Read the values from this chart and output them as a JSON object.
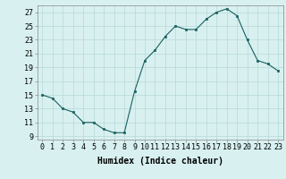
{
  "x": [
    0,
    1,
    2,
    3,
    4,
    5,
    6,
    7,
    8,
    9,
    10,
    11,
    12,
    13,
    14,
    15,
    16,
    17,
    18,
    19,
    20,
    21,
    22,
    23
  ],
  "y": [
    15,
    14.5,
    13,
    12.5,
    11,
    11,
    10,
    9.5,
    9.5,
    15.5,
    20,
    21.5,
    23.5,
    25,
    24.5,
    24.5,
    26,
    27,
    27.5,
    26.5,
    23,
    20,
    19.5,
    18.5
  ],
  "line_color": "#1a6060",
  "marker_color": "#1a6060",
  "bg_color": "#d8f0f0",
  "grid_color": "#b8d8d8",
  "xlabel": "Humidex (Indice chaleur)",
  "xlim": [
    -0.5,
    23.5
  ],
  "ylim": [
    8.5,
    28
  ],
  "yticks": [
    9,
    11,
    13,
    15,
    17,
    19,
    21,
    23,
    25,
    27
  ],
  "xticks": [
    0,
    1,
    2,
    3,
    4,
    5,
    6,
    7,
    8,
    9,
    10,
    11,
    12,
    13,
    14,
    15,
    16,
    17,
    18,
    19,
    20,
    21,
    22,
    23
  ],
  "tick_font_size": 6,
  "label_font_size": 7
}
